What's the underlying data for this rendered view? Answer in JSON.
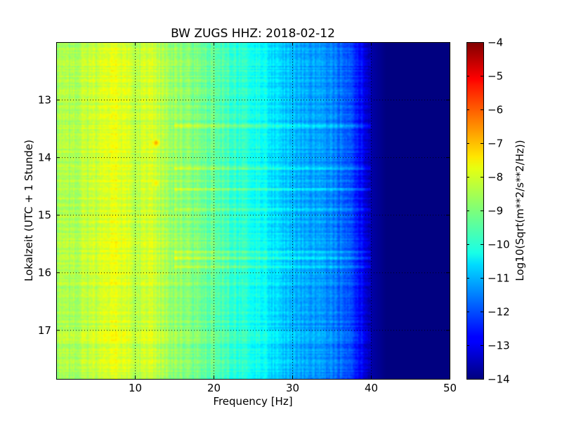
{
  "chart_data": {
    "type": "heatmap",
    "title": "BW ZUGS HHZ: 2018-02-12",
    "xlabel": "Frequency [Hz]",
    "ylabel": "Lokalzeit (UTC + 1 Stunde)",
    "xlim": [
      0,
      50
    ],
    "ylim": [
      17.85,
      12.0
    ],
    "y_inverted": true,
    "xticks": [
      10,
      20,
      30,
      40,
      50
    ],
    "xtick_labels": [
      "10",
      "20",
      "30",
      "40",
      "50"
    ],
    "yticks": [
      13,
      14,
      15,
      16,
      17
    ],
    "ytick_labels": [
      "13",
      "14",
      "15",
      "16",
      "17"
    ],
    "grid": true,
    "colorbar": {
      "label": "Log10(Sqrt(m**2/s**2/Hz))",
      "range": [
        -14,
        -4
      ],
      "ticks": [
        -4,
        -5,
        -6,
        -7,
        -8,
        -9,
        -10,
        -11,
        -12,
        -13,
        -14
      ],
      "tick_labels": [
        "−4",
        "−5",
        "−6",
        "−7",
        "−8",
        "−9",
        "−10",
        "−11",
        "−12",
        "−13",
        "−14"
      ],
      "colormap": "jet"
    },
    "frequency_profile": {
      "frequency_hz": [
        0,
        2,
        5,
        8,
        10,
        12,
        15,
        18,
        20,
        22,
        25,
        28,
        30,
        32,
        35,
        37,
        38,
        39,
        40,
        42,
        45,
        50
      ],
      "value": [
        -8.6,
        -8.5,
        -8.3,
        -8.0,
        -8.4,
        -8.2,
        -8.8,
        -9.1,
        -9.3,
        -9.6,
        -10.0,
        -10.6,
        -10.9,
        -11.1,
        -11.4,
        -11.9,
        -12.3,
        -12.8,
        -13.6,
        -14.0,
        -14.0,
        -14.0
      ]
    },
    "bright_spots": [
      {
        "frequency_hz": 12.7,
        "hour": 13.75,
        "value": -6.8
      },
      {
        "frequency_hz": 12.7,
        "hour": 14.45,
        "value": -7.5
      }
    ],
    "high_noise_bands_hours": [
      13.45,
      14.2,
      14.55,
      14.9,
      15.65,
      15.75,
      15.9
    ]
  }
}
